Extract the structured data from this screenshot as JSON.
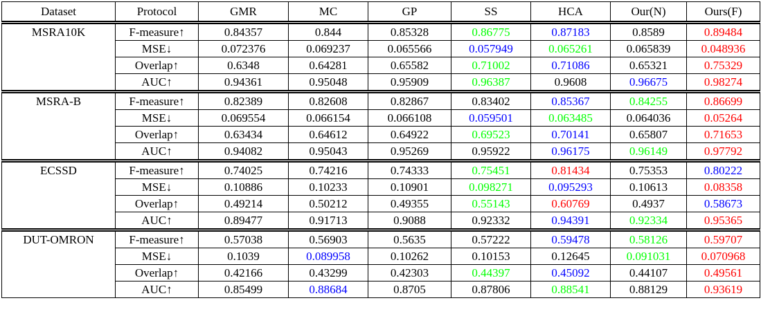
{
  "table": {
    "header": [
      "Dataset",
      "Protocol",
      "GMR",
      "MC",
      "GP",
      "SS",
      "HCA",
      "Our(N)",
      "Ours(F)"
    ],
    "groups": [
      {
        "dataset": "MSRA10K",
        "rows": [
          {
            "protocol": "F-measure↑",
            "values": [
              "0.84357",
              "0.844",
              "0.85328",
              "0.86775",
              "0.87183",
              "0.8589",
              "0.89484"
            ],
            "colors": [
              "#000",
              "#000",
              "#000",
              "#00ff00",
              "#0000ff",
              "#000",
              "#ff0000"
            ]
          },
          {
            "protocol": "MSE↓",
            "values": [
              "0.072376",
              "0.069237",
              "0.065566",
              "0.057949",
              "0.065261",
              "0.065839",
              "0.048936"
            ],
            "colors": [
              "#000",
              "#000",
              "#000",
              "#0000ff",
              "#00ff00",
              "#000",
              "#ff0000"
            ]
          },
          {
            "protocol": "Overlap↑",
            "values": [
              "0.6348",
              "0.64281",
              "0.65582",
              "0.71002",
              "0.71086",
              "0.65321",
              "0.75329"
            ],
            "colors": [
              "#000",
              "#000",
              "#000",
              "#00ff00",
              "#0000ff",
              "#000",
              "#ff0000"
            ]
          },
          {
            "protocol": "AUC↑",
            "values": [
              "0.94361",
              "0.95048",
              "0.95909",
              "0.96387",
              "0.9608",
              "0.96675",
              "0.98274"
            ],
            "colors": [
              "#000",
              "#000",
              "#000",
              "#00ff00",
              "#000",
              "#0000ff",
              "#ff0000"
            ]
          }
        ]
      },
      {
        "dataset": "MSRA-B",
        "rows": [
          {
            "protocol": "F-measure↑",
            "values": [
              "0.82389",
              "0.82608",
              "0.82867",
              "0.83402",
              "0.85367",
              "0.84255",
              "0.86699"
            ],
            "colors": [
              "#000",
              "#000",
              "#000",
              "#000",
              "#0000ff",
              "#00ff00",
              "#ff0000"
            ]
          },
          {
            "protocol": "MSE↓",
            "values": [
              "0.069554",
              "0.066154",
              "0.066108",
              "0.059501",
              "0.063485",
              "0.064036",
              "0.05264"
            ],
            "colors": [
              "#000",
              "#000",
              "#000",
              "#0000ff",
              "#00ff00",
              "#000",
              "#ff0000"
            ]
          },
          {
            "protocol": "Overlap↑",
            "values": [
              "0.63434",
              "0.64612",
              "0.64922",
              "0.69523",
              "0.70141",
              "0.65807",
              "0.71653"
            ],
            "colors": [
              "#000",
              "#000",
              "#000",
              "#00ff00",
              "#0000ff",
              "#000",
              "#ff0000"
            ]
          },
          {
            "protocol": "AUC↑",
            "values": [
              "0.94082",
              "0.95043",
              "0.95269",
              "0.95922",
              "0.96175",
              "0.96149",
              "0.97792"
            ],
            "colors": [
              "#000",
              "#000",
              "#000",
              "#000",
              "#0000ff",
              "#00ff00",
              "#ff0000"
            ]
          }
        ]
      },
      {
        "dataset": "ECSSD",
        "rows": [
          {
            "protocol": "F-measure↑",
            "values": [
              "0.74025",
              "0.74216",
              "0.74333",
              "0.75451",
              "0.81434",
              "0.75353",
              "0.80222"
            ],
            "colors": [
              "#000",
              "#000",
              "#000",
              "#00ff00",
              "#ff0000",
              "#000",
              "#0000ff"
            ]
          },
          {
            "protocol": "MSE↓",
            "values": [
              "0.10886",
              "0.10233",
              "0.10901",
              "0.098271",
              "0.095293",
              "0.10613",
              "0.08358"
            ],
            "colors": [
              "#000",
              "#000",
              "#000",
              "#00ff00",
              "#0000ff",
              "#000",
              "#ff0000"
            ]
          },
          {
            "protocol": "Overlap↑",
            "values": [
              "0.49214",
              "0.50212",
              "0.49355",
              "0.55143",
              "0.60769",
              "0.4937",
              "0.58673"
            ],
            "colors": [
              "#000",
              "#000",
              "#000",
              "#00ff00",
              "#ff0000",
              "#000",
              "#0000ff"
            ]
          },
          {
            "protocol": "AUC↑",
            "values": [
              "0.89477",
              "0.91713",
              "0.9088",
              "0.92332",
              "0.94391",
              "0.92334",
              "0.95365"
            ],
            "colors": [
              "#000",
              "#000",
              "#000",
              "#000",
              "#0000ff",
              "#00ff00",
              "#ff0000"
            ]
          }
        ]
      },
      {
        "dataset": "DUT-OMRON",
        "rows": [
          {
            "protocol": "F-measure↑",
            "values": [
              "0.57038",
              "0.56903",
              "0.5635",
              "0.57222",
              "0.59478",
              "0.58126",
              "0.59707"
            ],
            "colors": [
              "#000",
              "#000",
              "#000",
              "#000",
              "#0000ff",
              "#00ff00",
              "#ff0000"
            ]
          },
          {
            "protocol": "MSE↓",
            "values": [
              "0.1039",
              "0.089958",
              "0.10262",
              "0.10153",
              "0.12645",
              "0.091031",
              "0.070968"
            ],
            "colors": [
              "#000",
              "#0000ff",
              "#000",
              "#000",
              "#000",
              "#00ff00",
              "#ff0000"
            ]
          },
          {
            "protocol": "Overlap↑",
            "values": [
              "0.42166",
              "0.43299",
              "0.42303",
              "0.44397",
              "0.45092",
              "0.44107",
              "0.49561"
            ],
            "colors": [
              "#000",
              "#000",
              "#000",
              "#00ff00",
              "#0000ff",
              "#000",
              "#ff0000"
            ]
          },
          {
            "protocol": "AUC↑",
            "values": [
              "0.85499",
              "0.88684",
              "0.8705",
              "0.87806",
              "0.88541",
              "0.88129",
              "0.93619"
            ],
            "colors": [
              "#000",
              "#0000ff",
              "#000",
              "#000",
              "#00ff00",
              "#000",
              "#ff0000"
            ]
          }
        ]
      }
    ]
  }
}
